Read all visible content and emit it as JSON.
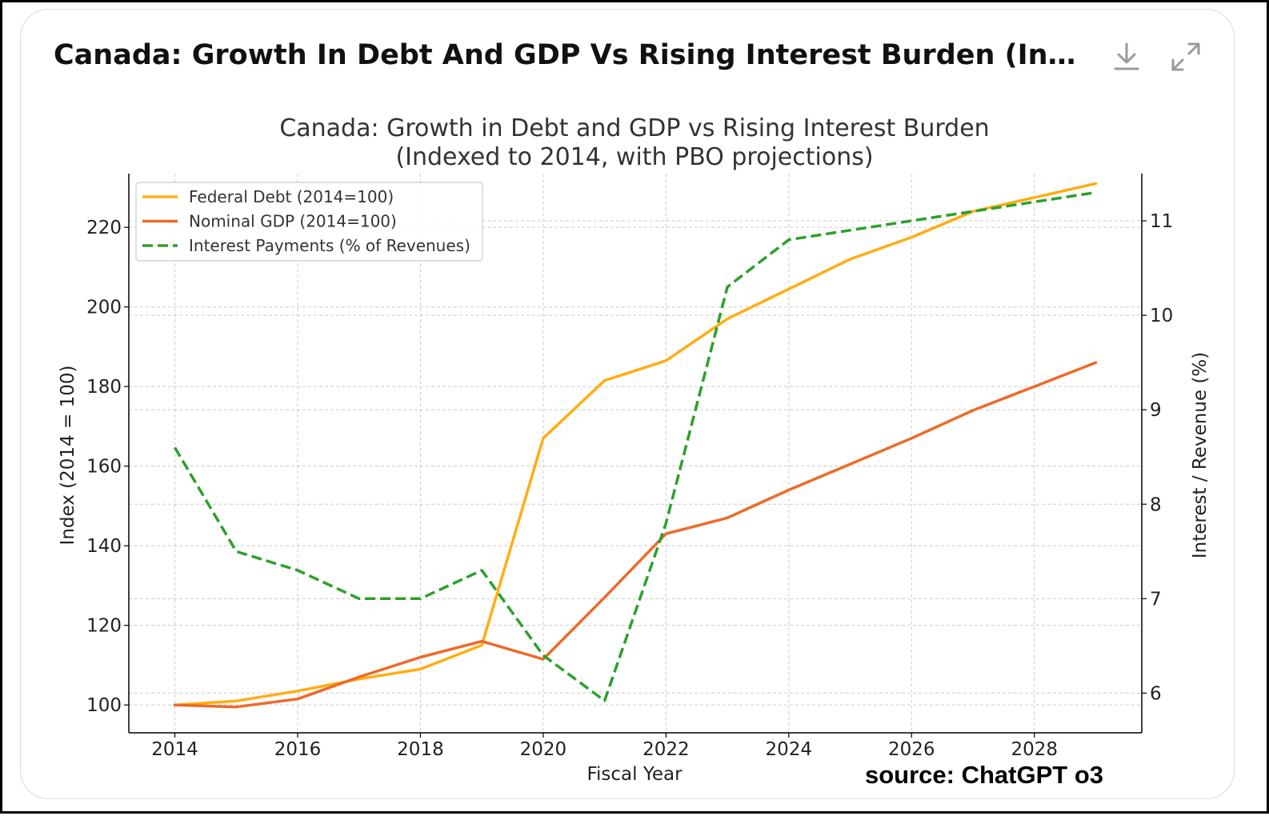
{
  "header": {
    "title": "Canada: Growth In Debt And GDP Vs Rising Interest Burden (Indexed T...",
    "download_icon": "download-icon",
    "expand_icon": "expand-icon"
  },
  "colors": {
    "debt": "#ffad14",
    "gdp": "#ee6a28",
    "interest": "#2ca02c",
    "grid": "#cccccc"
  },
  "chart_data": {
    "type": "line",
    "title": "Canada: Growth in Debt and GDP vs Rising Interest Burden",
    "subtitle": "(Indexed to 2014, with PBO projections)",
    "xlabel": "Fiscal Year",
    "ylabel": "Index (2014 = 100)",
    "y2label": "Interest / Revenue (%)",
    "x": [
      2014,
      2015,
      2016,
      2017,
      2018,
      2019,
      2020,
      2021,
      2022,
      2023,
      2024,
      2025,
      2026,
      2027,
      2028,
      2029
    ],
    "xlim": [
      2013.25,
      2029.75
    ],
    "ylim": [
      93,
      233.5
    ],
    "y2lim": [
      5.58,
      11.5
    ],
    "xticks": [
      2014,
      2016,
      2018,
      2020,
      2022,
      2024,
      2026,
      2028
    ],
    "yticks": [
      100,
      120,
      140,
      160,
      180,
      200,
      220
    ],
    "y2ticks": [
      6,
      7,
      8,
      9,
      10,
      11
    ],
    "grid": true,
    "legend_position": "top-left",
    "series": [
      {
        "name": "Federal Debt (2014=100)",
        "axis": "left",
        "style": "solid",
        "values": [
          100,
          101,
          103.5,
          106.5,
          109,
          115,
          167,
          181.5,
          186.5,
          197,
          204.5,
          212,
          217.5,
          224,
          227.5,
          231
        ]
      },
      {
        "name": "Nominal GDP (2014=100)",
        "axis": "left",
        "style": "solid",
        "values": [
          100,
          99.5,
          101.5,
          107,
          112,
          116,
          111.5,
          127,
          143,
          147,
          154,
          160.5,
          167,
          174,
          180,
          186
        ]
      },
      {
        "name": "Interest Payments (% of Revenues)",
        "axis": "right",
        "style": "dashed",
        "values": [
          8.6,
          7.5,
          7.3,
          7.0,
          7.0,
          7.3,
          6.4,
          5.92,
          7.8,
          10.3,
          10.8,
          10.9,
          11.0,
          11.1,
          11.2,
          11.3
        ]
      }
    ]
  },
  "watermark": "source: ChatGPT o3"
}
